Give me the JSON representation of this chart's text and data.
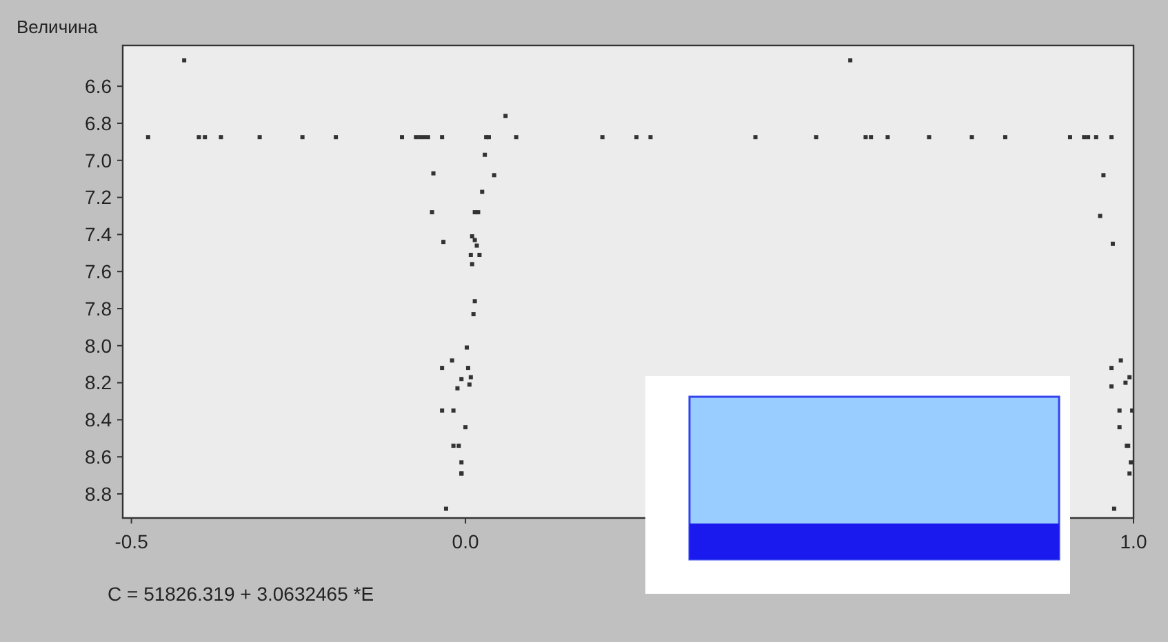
{
  "chart_data": {
    "type": "scatter",
    "ylabel": "Величина",
    "annotations": [
      "C = 51826.319 + 3.0632465 *E"
    ],
    "xlim": [
      -0.513,
      1.0
    ],
    "ylim": [
      8.93,
      6.38
    ],
    "xticks": [
      {
        "value": -0.5,
        "label": "-0.5"
      },
      {
        "value": 0,
        "label": "0.0"
      },
      {
        "value": 1,
        "label": "1.0"
      }
    ],
    "yticks": [
      6.6,
      6.8,
      {
        "value": 7,
        "label": "7.0"
      },
      7.2,
      7.4,
      7.6,
      7.8,
      {
        "value": 8,
        "label": "8.0"
      },
      8.2,
      8.4,
      8.6,
      8.8
    ],
    "grid": false,
    "marker": "square",
    "series": [
      {
        "color": "#333333",
        "x": [
          -0.475,
          -0.399,
          -0.39,
          -0.366,
          -0.308,
          -0.244,
          -0.194,
          -0.095,
          -0.074,
          -0.068,
          -0.062,
          -0.056,
          -0.035,
          0.031,
          0.035,
          0.076,
          0.205,
          0.256,
          0.277,
          0.434,
          0.525,
          0.599,
          0.607,
          0.632,
          0.694,
          0.758,
          0.808,
          0.905,
          0.926,
          0.932,
          0.944,
          0.967,
          -0.421,
          0.576,
          0.06,
          0.029,
          -0.048,
          0.043,
          0.025,
          -0.05,
          0.014,
          0.019,
          -0.033,
          0.01,
          0.014,
          0.017,
          0.008,
          0.021,
          0.01,
          0.014,
          0.012,
          0.002,
          -0.02,
          -0.035,
          0.004,
          0.008,
          -0.006,
          0.006,
          -0.012,
          -0.035,
          -0.018,
          -0.0,
          -0.018,
          -0.01,
          -0.006,
          -0.006,
          -0.006,
          -0.029,
          0.981,
          0.967,
          0.994,
          0.988,
          0.967,
          0.979,
          0.998,
          0.979,
          0.99,
          0.992,
          0.996,
          0.994,
          0.971,
          0.955,
          0.95,
          0.969
        ],
        "values": [
          6.875,
          6.875,
          6.875,
          6.875,
          6.875,
          6.875,
          6.875,
          6.875,
          6.875,
          6.875,
          6.875,
          6.875,
          6.875,
          6.875,
          6.875,
          6.875,
          6.875,
          6.875,
          6.875,
          6.875,
          6.875,
          6.875,
          6.875,
          6.875,
          6.875,
          6.875,
          6.875,
          6.875,
          6.875,
          6.875,
          6.875,
          6.875,
          6.46,
          6.46,
          6.76,
          6.97,
          7.07,
          7.08,
          7.17,
          7.28,
          7.28,
          7.28,
          7.44,
          7.41,
          7.43,
          7.46,
          7.51,
          7.51,
          7.56,
          7.76,
          7.83,
          8.01,
          8.08,
          8.12,
          8.12,
          8.17,
          8.18,
          8.21,
          8.23,
          8.35,
          8.35,
          8.44,
          8.54,
          8.54,
          8.63,
          8.69,
          8.69,
          8.88,
          8.08,
          8.12,
          8.17,
          8.2,
          8.22,
          8.35,
          8.35,
          8.44,
          8.54,
          8.54,
          8.63,
          8.69,
          8.88,
          7.08,
          7.3,
          7.45
        ]
      }
    ]
  }
}
